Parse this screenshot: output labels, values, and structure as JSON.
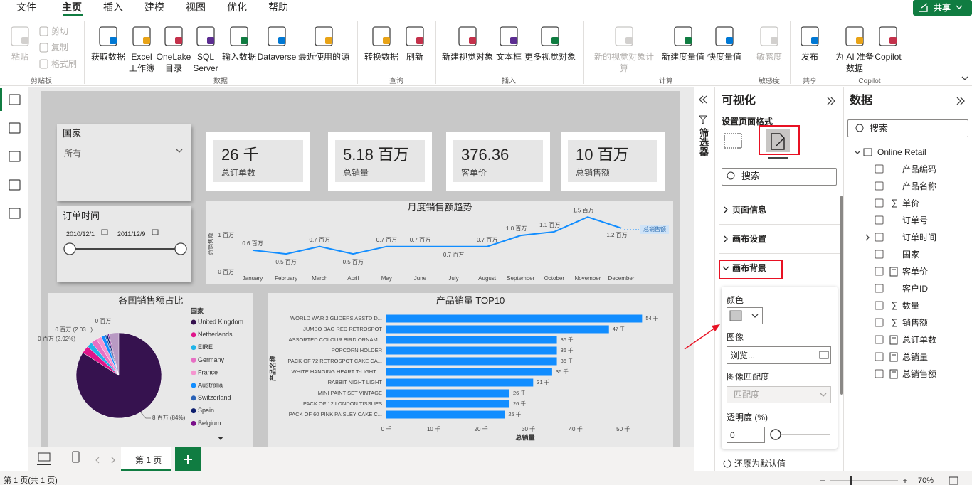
{
  "menu_tabs": [
    "文件",
    "主页",
    "插入",
    "建模",
    "视图",
    "优化",
    "帮助"
  ],
  "share_button": "共享",
  "ribbon": {
    "groups": [
      {
        "label": "剪贴板",
        "buttons": [
          "粘贴",
          "剪切",
          "复制",
          "格式刷"
        ]
      },
      {
        "label": "数据",
        "buttons": [
          "获取数据",
          "Excel 工作簿",
          "OneLake 目录",
          "SQL Server",
          "输入数据",
          "Dataverse",
          "最近使用的源"
        ]
      },
      {
        "label": "查询",
        "buttons": [
          "转换数据",
          "刷新"
        ]
      },
      {
        "label": "插入",
        "buttons": [
          "新建视觉对象",
          "文本框",
          "更多视觉对象"
        ]
      },
      {
        "label": "计算",
        "buttons": [
          "新的视觉对象计算",
          "新建度量值",
          "快度量值"
        ]
      },
      {
        "label": "敏感度",
        "buttons": [
          "敏感度"
        ]
      },
      {
        "label": "共享",
        "buttons": [
          "发布"
        ]
      },
      {
        "label": "Copilot",
        "buttons": [
          "为 AI 准备数据",
          "Copilot"
        ]
      }
    ]
  },
  "slicers": [
    {
      "title": "国家",
      "value": "所有"
    },
    {
      "title": "订单时间",
      "start": "2010/12/1",
      "end": "2011/12/9"
    }
  ],
  "cards": [
    {
      "value": "26 千",
      "label": "总订单数"
    },
    {
      "value": "5.18 百万",
      "label": "总销量"
    },
    {
      "value": "376.36",
      "label": "客单价"
    },
    {
      "value": "10 百万",
      "label": "总销售额"
    }
  ],
  "line_chart": {
    "type": "line",
    "title": "月度销售额趋势",
    "y_axis_label": "总销售额",
    "categories": [
      "January",
      "February",
      "March",
      "April",
      "May",
      "June",
      "July",
      "August",
      "September",
      "October",
      "November",
      "December"
    ],
    "series": [
      {
        "name": "总销售额",
        "color": "#118dff",
        "values": [
          0.6,
          0.5,
          0.7,
          0.5,
          0.7,
          0.7,
          0.7,
          0.7,
          1.0,
          1.1,
          1.5,
          1.2
        ],
        "value_labels": [
          "0.6 百万",
          "0.5 百万",
          "0.7 百万",
          "0.5 百万",
          "0.7 百万",
          "0.7 百万",
          "0.7 百万",
          "0.7 百万",
          "1.0 百万",
          "1.1 百万",
          "1.5 百万",
          "1.2 百万"
        ]
      }
    ],
    "ylim": [
      0,
      1.6
    ],
    "yticks": [
      {
        "value": 0,
        "label": "0 百万"
      },
      {
        "value": 1,
        "label": "1 百万"
      }
    ]
  },
  "pie_chart": {
    "type": "pie",
    "title": "各国销售额占比",
    "legend_title": "国家",
    "categories": [
      "United Kingdom",
      "Netherlands",
      "EIRE",
      "Germany",
      "France",
      "Australia",
      "Switzerland",
      "Spain",
      "Belgium"
    ],
    "values": [
      84,
      2.92,
      2.03,
      2.3,
      2.0,
      1.4,
      0.6,
      0.6,
      0.4
    ],
    "value_labels": [
      "8 百万 (84%)",
      "0 百万 (2.92%)",
      "0 百万 (2.03...)",
      "0 百万",
      null,
      null,
      null,
      null,
      null
    ],
    "colors": [
      "#36124f",
      "#e0168b",
      "#20b4e8",
      "#e76fc4",
      "#f595cf",
      "#118dff",
      "#2b63b7",
      "#0e1f6e",
      "#7a0f8a"
    ]
  },
  "bar_chart": {
    "type": "bar",
    "title": "产品销量 TOP10",
    "x_axis_label": "总销量",
    "y_axis_label": "产品名称",
    "color": "#118dff",
    "categories": [
      "WORLD WAR 2 GLIDERS ASSTD D...",
      "JUMBO BAG RED RETROSPOT",
      "ASSORTED COLOUR BIRD ORNAM...",
      "POPCORN HOLDER",
      "PACK OF 72 RETROSPOT CAKE CA...",
      "WHITE HANGING HEART T-LIGHT ...",
      "RABBIT NIGHT LIGHT",
      "MINI PAINT SET VINTAGE",
      "PACK OF 12 LONDON TISSUES",
      "PACK OF 60 PINK PAISLEY CAKE C..."
    ],
    "values": [
      54,
      47,
      36,
      36,
      36,
      35,
      31,
      26,
      26,
      25
    ],
    "value_labels": [
      "54 千",
      "47 千",
      "36 千",
      "36 千",
      "36 千",
      "35 千",
      "31 千",
      "26 千",
      "26 千",
      "25 千"
    ],
    "xlim": [
      0,
      55
    ],
    "xticks": [
      {
        "value": 0,
        "label": "0 千"
      },
      {
        "value": 10,
        "label": "10 千"
      },
      {
        "value": 20,
        "label": "20 千"
      },
      {
        "value": 30,
        "label": "30 千"
      },
      {
        "value": 40,
        "label": "40 千"
      },
      {
        "value": 50,
        "label": "50 千"
      }
    ]
  },
  "filter_pane": {
    "label": "筛选器"
  },
  "visualizations_pane": {
    "title": "可视化",
    "subtitle": "设置页面格式",
    "search": "搜索",
    "sections": [
      "页面信息",
      "画布设置",
      "画布背景"
    ],
    "color_label": "颜色",
    "image_label": "图像",
    "browse": "浏览...",
    "image_fit_label": "图像匹配度",
    "image_fit": "匹配度",
    "transparency_label": "透明度 (%)",
    "transparency": "0",
    "reset": "还原为默认值"
  },
  "data_pane": {
    "title": "数据",
    "search": "搜索",
    "model": "Online Retail",
    "fields": [
      "产品编码",
      "产品名称",
      "单价",
      "订单号",
      "订单时间",
      "国家",
      "客单价",
      "客户ID",
      "数量",
      "销售额",
      "总订单数",
      "总销量",
      "总销售额"
    ]
  },
  "page_tabs": [
    "第 1 页"
  ],
  "status_bar": {
    "page_info": "第 1 页(共 1 页)",
    "zoom": "70%"
  }
}
